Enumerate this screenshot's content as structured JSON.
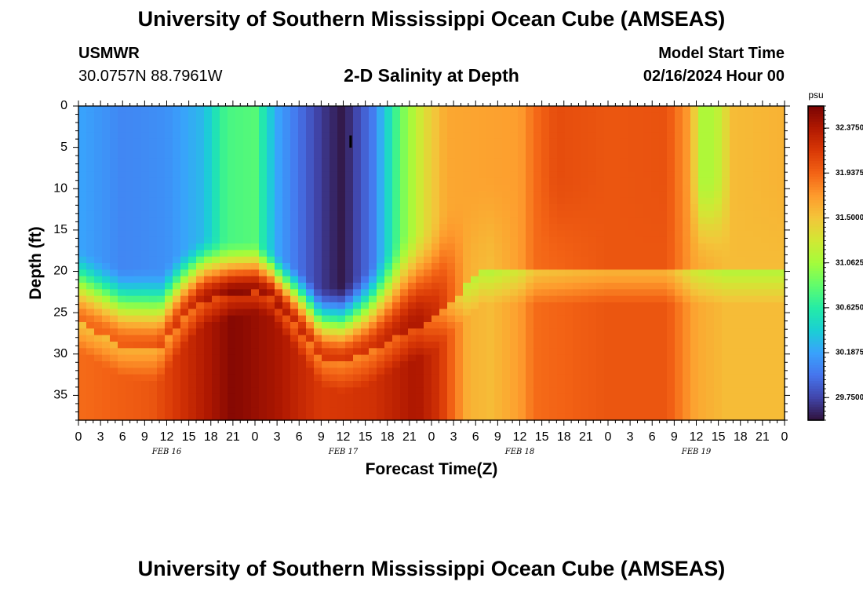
{
  "header": {
    "title": "University of Southern Mississippi Ocean Cube (AMSEAS)",
    "station_name": "USMWR",
    "station_coords": "30.0757N  88.7961W",
    "subtitle": "2-D Salinity at Depth",
    "start_label": "Model Start Time",
    "start_value": "02/16/2024 Hour 00"
  },
  "footer": {
    "title": "University of Southern Mississippi Ocean Cube (AMSEAS)"
  },
  "chart_data": {
    "type": "heatmap",
    "title": "2-D Salinity at Depth",
    "xlabel": "Forecast Time(Z)",
    "ylabel": "Depth (ft)",
    "x_range_hours": [
      0,
      96
    ],
    "y_range_ft": [
      0,
      38
    ],
    "y_ticks": [
      0,
      5,
      10,
      15,
      20,
      25,
      30,
      35
    ],
    "x_tick_labels": [
      "0",
      "3",
      "6",
      "9",
      "12",
      "15",
      "18",
      "21",
      "0",
      "3",
      "6",
      "9",
      "12",
      "15",
      "18",
      "21",
      "0",
      "3",
      "6",
      "9",
      "12",
      "15",
      "18",
      "21",
      "0",
      "3",
      "6",
      "9",
      "12",
      "15",
      "18",
      "21",
      "0"
    ],
    "day_labels": [
      {
        "text": "FEB 16",
        "hour": 12
      },
      {
        "text": "FEB 17",
        "hour": 36
      },
      {
        "text": "FEB 18",
        "hour": 60
      },
      {
        "text": "FEB 19",
        "hour": 84
      }
    ],
    "colorbar": {
      "unit": "psu",
      "min": 29.53,
      "max": 32.59,
      "tick_values": [
        32.375,
        31.9375,
        31.5,
        31.0625,
        30.625,
        30.1875,
        29.75
      ],
      "tick_labels": [
        "32.3750",
        "31.9375",
        "31.5000",
        "31.0625",
        "30.6250",
        "30.1875",
        "29.7500"
      ],
      "colors": [
        "#30123b",
        "#4145ab",
        "#4675ed",
        "#39a2fc",
        "#1bcfd4",
        "#24eca6",
        "#61fc6c",
        "#a4fc3b",
        "#d1e834",
        "#f3c63a",
        "#fe9b2d",
        "#f36315",
        "#d93806",
        "#b11901",
        "#7a0403"
      ]
    },
    "marker_label": "I",
    "surface_salinity_by_hour": [
      {
        "hour": 0,
        "psu": 30.2
      },
      {
        "hour": 6,
        "psu": 30.05
      },
      {
        "hour": 12,
        "psu": 30.1
      },
      {
        "hour": 17,
        "psu": 30.3
      },
      {
        "hour": 20,
        "psu": 30.75
      },
      {
        "hour": 24,
        "psu": 30.8
      },
      {
        "hour": 27,
        "psu": 30.2
      },
      {
        "hour": 33,
        "psu": 29.7
      },
      {
        "hour": 36,
        "psu": 29.55
      },
      {
        "hour": 40,
        "psu": 30.0
      },
      {
        "hour": 44,
        "psu": 30.9
      },
      {
        "hour": 47,
        "psu": 31.35
      },
      {
        "hour": 50,
        "psu": 31.65
      },
      {
        "hour": 60,
        "psu": 31.7
      },
      {
        "hour": 62,
        "psu": 31.9
      },
      {
        "hour": 65,
        "psu": 32.05
      },
      {
        "hour": 72,
        "psu": 32.0
      },
      {
        "hour": 80,
        "psu": 32.02
      },
      {
        "hour": 83,
        "psu": 31.7
      },
      {
        "hour": 85,
        "psu": 31.05
      },
      {
        "hour": 87,
        "psu": 31.2
      },
      {
        "hour": 89,
        "psu": 31.55
      },
      {
        "hour": 96,
        "psu": 31.6
      }
    ],
    "bottom_salinity_by_hour": [
      {
        "hour": 0,
        "psu": 31.9
      },
      {
        "hour": 10,
        "psu": 32.0
      },
      {
        "hour": 16,
        "psu": 32.3
      },
      {
        "hour": 21,
        "psu": 32.55
      },
      {
        "hour": 27,
        "psu": 32.4
      },
      {
        "hour": 33,
        "psu": 32.15
      },
      {
        "hour": 40,
        "psu": 32.2
      },
      {
        "hour": 46,
        "psu": 32.4
      },
      {
        "hour": 49,
        "psu": 32.2
      },
      {
        "hour": 53,
        "psu": 31.6
      },
      {
        "hour": 56,
        "psu": 31.55
      },
      {
        "hour": 60,
        "psu": 31.7
      },
      {
        "hour": 62,
        "psu": 31.9
      },
      {
        "hour": 72,
        "psu": 32.0
      },
      {
        "hour": 80,
        "psu": 32.0
      },
      {
        "hour": 84,
        "psu": 31.65
      },
      {
        "hour": 88,
        "psu": 31.55
      },
      {
        "hour": 96,
        "psu": 31.55
      }
    ],
    "bottom_layer_top_depth_by_hour": [
      {
        "hour": 0,
        "depth_ft": 26
      },
      {
        "hour": 6,
        "depth_ft": 29
      },
      {
        "hour": 11,
        "depth_ft": 29.5
      },
      {
        "hour": 14,
        "depth_ft": 26
      },
      {
        "hour": 17,
        "depth_ft": 23.5
      },
      {
        "hour": 24,
        "depth_ft": 22.5
      },
      {
        "hour": 26,
        "depth_ft": 23
      },
      {
        "hour": 30,
        "depth_ft": 27
      },
      {
        "hour": 33,
        "depth_ft": 30.5
      },
      {
        "hour": 36,
        "depth_ft": 31
      },
      {
        "hour": 39,
        "depth_ft": 30
      },
      {
        "hour": 42,
        "depth_ft": 28.5
      },
      {
        "hour": 45,
        "depth_ft": 27
      },
      {
        "hour": 48,
        "depth_ft": 26
      },
      {
        "hour": 50,
        "depth_ft": 24
      },
      {
        "hour": 55,
        "depth_ft": 20
      },
      {
        "hour": 96,
        "depth_ft": 20
      }
    ],
    "mixing_layer_thickness_ft_by_hour": [
      {
        "hour": 0,
        "depth_ft": 9
      },
      {
        "hour": 10,
        "depth_ft": 10
      },
      {
        "hour": 20,
        "depth_ft": 7
      },
      {
        "hour": 26,
        "depth_ft": 6
      },
      {
        "hour": 34,
        "depth_ft": 9
      },
      {
        "hour": 38,
        "depth_ft": 10
      },
      {
        "hour": 44,
        "depth_ft": 12
      },
      {
        "hour": 50,
        "depth_ft": 12
      },
      {
        "hour": 96,
        "depth_ft": 12
      }
    ]
  }
}
